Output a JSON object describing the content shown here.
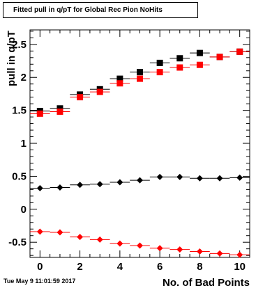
{
  "title": "Fitted pull in q/pT for Global Rec Pion NoHits",
  "footer_date": "Tue May  9 11:01:59 2017",
  "chart_data": {
    "type": "scatter",
    "title": "Fitted pull in q/pT for Global Rec Pion NoHits",
    "xlabel": "No. of Bad Points",
    "ylabel": "pull in q/pT",
    "xlim": [
      -0.5,
      10.5
    ],
    "ylim": [
      -0.73,
      2.72
    ],
    "xticks": [
      0,
      2,
      4,
      6,
      8,
      10
    ],
    "xtick_labels": [
      "0",
      "2",
      "4",
      "6",
      "8",
      "10"
    ],
    "yticks": [
      -0.5,
      0,
      0.5,
      1,
      1.5,
      2,
      2.5
    ],
    "ytick_labels": [
      "-0.5",
      "0",
      "0.5",
      "1",
      "1.5",
      "2",
      "2.5"
    ],
    "grid": false,
    "x": [
      0,
      1,
      2,
      3,
      4,
      5,
      6,
      7,
      8,
      9,
      10
    ],
    "series": [
      {
        "marker": "square",
        "color": "#000000",
        "values": [
          1.49,
          1.53,
          1.74,
          1.82,
          1.98,
          2.08,
          2.22,
          2.29,
          2.37,
          2.31,
          2.39
        ]
      },
      {
        "marker": "square",
        "color": "#ff0000",
        "values": [
          1.45,
          1.48,
          1.7,
          1.78,
          1.91,
          1.98,
          2.08,
          2.15,
          2.19,
          2.31,
          2.39
        ]
      },
      {
        "marker": "diamond",
        "color": "#000000",
        "values": [
          0.32,
          0.33,
          0.37,
          0.38,
          0.41,
          0.44,
          0.49,
          0.49,
          0.47,
          0.47,
          0.48
        ]
      },
      {
        "marker": "diamond",
        "color": "#ff0000",
        "values": [
          -0.34,
          -0.35,
          -0.42,
          -0.46,
          -0.52,
          -0.55,
          -0.59,
          -0.61,
          -0.64,
          -0.67,
          -0.69
        ]
      }
    ]
  }
}
